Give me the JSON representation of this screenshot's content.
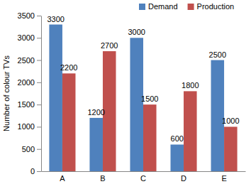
{
  "chart_data": {
    "type": "bar",
    "y_label": "Number of colour TVs",
    "categories": [
      "A",
      "B",
      "C",
      "D",
      "E"
    ],
    "series": [
      {
        "name": "Demand",
        "color": "#4f81bd",
        "values": [
          3300,
          1200,
          3000,
          600,
          2500
        ]
      },
      {
        "name": "Production",
        "color": "#c0504d",
        "values": [
          2200,
          2700,
          1500,
          1800,
          1000
        ]
      }
    ],
    "ylim": [
      0,
      3500
    ],
    "yticks": [
      0,
      500,
      1000,
      1500,
      2000,
      2500,
      3000,
      3500
    ],
    "grid": false,
    "legend": "top",
    "data_labels": true
  }
}
